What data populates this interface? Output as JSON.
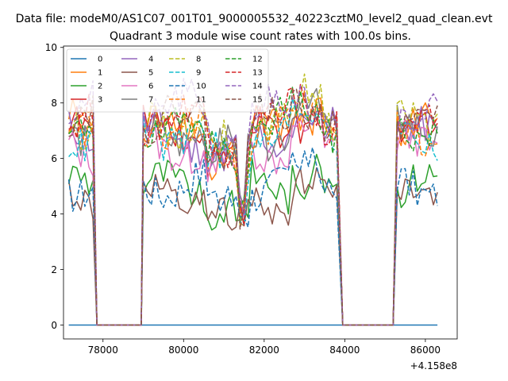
{
  "chart_data": {
    "type": "line",
    "suptitle": "Data file: modeM0/AS1C07_001T01_9000005532_40223cztM0_level2_quad_clean.evt",
    "title": "Quadrant 3 module wise count rates with 100.0s bins.",
    "xlabel": "",
    "ylabel": "",
    "x_offset_label": "+4.158e8",
    "xlim": [
      77020,
      86790
    ],
    "ylim": [
      -0.5,
      10.05
    ],
    "xticks": [
      78000,
      80000,
      82000,
      84000,
      86000
    ],
    "xtick_labels": [
      "78000",
      "80000",
      "82000",
      "84000",
      "86000"
    ],
    "yticks": [
      0,
      2,
      4,
      6,
      8,
      10
    ],
    "ytick_labels": [
      "0",
      "2",
      "4",
      "6",
      "8",
      "10"
    ],
    "grid": false,
    "legend_position": "upper-left",
    "legend_columns": 4,
    "x_segments": [
      [
        77150,
        77750
      ],
      [
        79000,
        83850
      ],
      [
        85300,
        86350
      ]
    ],
    "gap_ranges": [
      [
        77850,
        78950
      ],
      [
        83950,
        85200
      ]
    ],
    "base_levels": [
      0,
      7.2,
      5.0,
      7.0,
      6.8,
      4.6,
      6.4,
      7.0,
      7.4,
      6.9,
      5.1,
      7.1,
      7.2,
      7.5,
      7.8,
      7.4
    ],
    "series": [
      {
        "name": "0",
        "color": "#1f77b4",
        "dash": "solid"
      },
      {
        "name": "1",
        "color": "#ff7f0e",
        "dash": "solid"
      },
      {
        "name": "2",
        "color": "#2ca02c",
        "dash": "solid"
      },
      {
        "name": "3",
        "color": "#d62728",
        "dash": "solid"
      },
      {
        "name": "4",
        "color": "#9467bd",
        "dash": "solid"
      },
      {
        "name": "5",
        "color": "#8c564b",
        "dash": "solid"
      },
      {
        "name": "6",
        "color": "#e377c2",
        "dash": "solid"
      },
      {
        "name": "7",
        "color": "#7f7f7f",
        "dash": "solid"
      },
      {
        "name": "8",
        "color": "#bcbd22",
        "dash": "dashed"
      },
      {
        "name": "9",
        "color": "#17becf",
        "dash": "dashed"
      },
      {
        "name": "10",
        "color": "#1f77b4",
        "dash": "dashed"
      },
      {
        "name": "11",
        "color": "#ff7f0e",
        "dash": "dashed"
      },
      {
        "name": "12",
        "color": "#2ca02c",
        "dash": "dashed"
      },
      {
        "name": "13",
        "color": "#d62728",
        "dash": "dashed"
      },
      {
        "name": "14",
        "color": "#9467bd",
        "dash": "dashed"
      },
      {
        "name": "15",
        "color": "#8c564b",
        "dash": "dashed"
      }
    ]
  }
}
